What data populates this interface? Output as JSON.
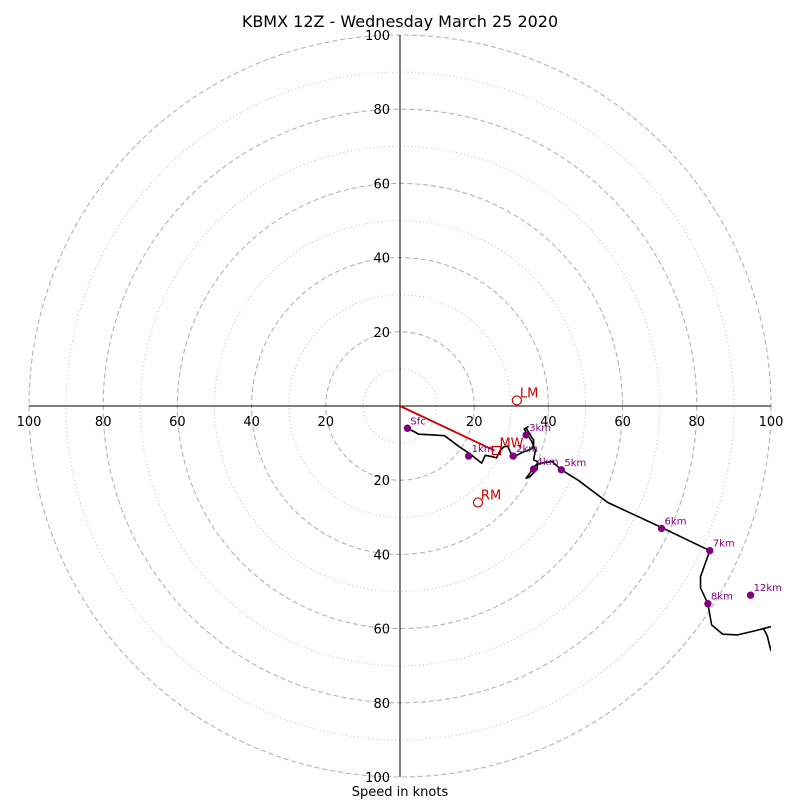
{
  "chart_data": {
    "type": "hodograph",
    "title": "KBMX 12Z - Wednesday March 25 2020",
    "xlabel": "Speed in knots",
    "ylabel": "",
    "xlim": [
      -100,
      100
    ],
    "ylim": [
      -100,
      100
    ],
    "grid": true,
    "rings_major_dashed": [
      20,
      40,
      60,
      80,
      100
    ],
    "rings_minor_dotted": [
      10,
      30,
      50,
      70,
      90
    ],
    "tick_labels": {
      "top": [
        "100",
        "80",
        "60",
        "40",
        "20"
      ],
      "bottom": [
        "20",
        "40",
        "60",
        "80",
        "100"
      ],
      "left": [
        "100",
        "80",
        "60",
        "40",
        "20"
      ],
      "right": [
        "20",
        "40",
        "60",
        "80",
        "100"
      ]
    },
    "hodograph_line": {
      "color": "#000000",
      "points": [
        [
          2,
          -6
        ],
        [
          4,
          -7
        ],
        [
          5,
          -7.6
        ],
        [
          9,
          -7.8
        ],
        [
          12,
          -8
        ],
        [
          16,
          -11
        ],
        [
          19,
          -13
        ],
        [
          22,
          -15.4
        ],
        [
          23,
          -13.3
        ],
        [
          25,
          -13.7
        ],
        [
          26,
          -14
        ],
        [
          27,
          -12
        ],
        [
          28,
          -11
        ],
        [
          29,
          -10.8
        ],
        [
          30,
          -13
        ],
        [
          31,
          -13.5
        ],
        [
          33,
          -12.5
        ],
        [
          35.5,
          -11.5
        ],
        [
          36,
          -10.5
        ],
        [
          36,
          -9
        ],
        [
          35.5,
          -8.5
        ],
        [
          35,
          -7.5
        ],
        [
          34,
          -6
        ],
        [
          34.5,
          -5.6
        ],
        [
          33.5,
          -6.2
        ],
        [
          34.5,
          -8
        ],
        [
          35.5,
          -9.5
        ],
        [
          36.5,
          -12
        ],
        [
          36,
          -14.5
        ],
        [
          37,
          -15
        ],
        [
          37,
          -17
        ],
        [
          35,
          -19
        ],
        [
          34,
          -19.5
        ],
        [
          36.5,
          -16
        ],
        [
          38,
          -15.4
        ],
        [
          41,
          -15
        ],
        [
          43.5,
          -17.2
        ],
        [
          48,
          -20
        ],
        [
          56,
          -26
        ],
        [
          71,
          -33
        ],
        [
          83.5,
          -39
        ],
        [
          81,
          -46
        ],
        [
          81,
          -49
        ],
        [
          83,
          -53.3
        ],
        [
          84,
          -59
        ],
        [
          87,
          -61.5
        ],
        [
          91,
          -61.7
        ],
        [
          96,
          -60.5
        ],
        [
          100,
          -59.5
        ],
        [
          98,
          -60
        ],
        [
          99,
          -62
        ],
        [
          99.5,
          -64
        ],
        [
          100,
          -66
        ]
      ]
    },
    "height_markers": [
      {
        "label": "Sfc",
        "u": 2,
        "v": -6,
        "color": "#800080"
      },
      {
        "label": "1km",
        "u": 18.5,
        "v": -13.5,
        "color": "#800080"
      },
      {
        "label": "2km",
        "u": 30.5,
        "v": -13.5,
        "color": "#800080"
      },
      {
        "label": "3km",
        "u": 34,
        "v": -7.8,
        "color": "#800080"
      },
      {
        "label": "4km",
        "u": 36,
        "v": -17,
        "color": "#800080"
      },
      {
        "label": "5km",
        "u": 43.5,
        "v": -17.2,
        "color": "#800080"
      },
      {
        "label": "6km",
        "u": 70.5,
        "v": -33,
        "color": "#800080"
      },
      {
        "label": "7km",
        "u": 83.5,
        "v": -39,
        "color": "#800080"
      },
      {
        "label": "8km",
        "u": 83,
        "v": -53.3,
        "color": "#800080"
      },
      {
        "label": "12km",
        "u": 94.5,
        "v": -51,
        "color": "#800080"
      }
    ],
    "storm_motion": {
      "color": "#cc0000",
      "mean_wind_vector": [
        [
          0,
          0
        ],
        [
          25.5,
          -12
        ]
      ],
      "points": [
        {
          "label": "LM",
          "u": 31.5,
          "v": 1.5
        },
        {
          "label": "MW",
          "u": 26,
          "v": -12
        },
        {
          "label": "RM",
          "u": 21,
          "v": -26
        }
      ]
    }
  }
}
